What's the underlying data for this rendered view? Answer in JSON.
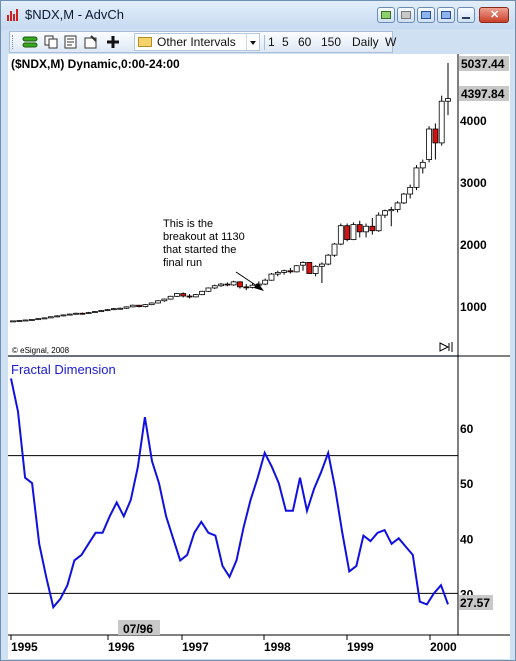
{
  "window": {
    "title": "$NDX,M - AdvCh"
  },
  "toolbar": {
    "interval_label": "Other Intervals",
    "intervals": [
      "1",
      "5",
      "60",
      "150",
      "Daily",
      "W"
    ]
  },
  "chart_data": [
    {
      "type": "candlestick",
      "title": "($NDX,M) Dynamic,0:00-24:00",
      "copyright": "© eSignal, 2008",
      "price_tags": [
        "5037.44",
        "4397.84"
      ],
      "y_ticks": [
        "4000",
        "3000",
        "2000",
        "1000"
      ],
      "yaxis": {
        "min": 0,
        "max": 5037.44,
        "ticks": [
          1000,
          2000,
          3000,
          4000
        ]
      },
      "annotation": {
        "lines": [
          "This is the",
          "breakout at 1130",
          "that started the",
          "final run"
        ]
      },
      "bars": [
        {
          "o": 390,
          "h": 405,
          "l": 380,
          "c": 398
        },
        {
          "o": 398,
          "h": 410,
          "l": 390,
          "c": 404
        },
        {
          "o": 404,
          "h": 420,
          "l": 396,
          "c": 414
        },
        {
          "o": 414,
          "h": 430,
          "l": 408,
          "c": 424
        },
        {
          "o": 424,
          "h": 445,
          "l": 418,
          "c": 438
        },
        {
          "o": 438,
          "h": 460,
          "l": 430,
          "c": 452
        },
        {
          "o": 452,
          "h": 480,
          "l": 448,
          "c": 472
        },
        {
          "o": 472,
          "h": 500,
          "l": 464,
          "c": 488
        },
        {
          "o": 488,
          "h": 515,
          "l": 480,
          "c": 505
        },
        {
          "o": 505,
          "h": 530,
          "l": 498,
          "c": 520
        },
        {
          "o": 520,
          "h": 545,
          "l": 510,
          "c": 535
        },
        {
          "o": 535,
          "h": 548,
          "l": 515,
          "c": 530
        },
        {
          "o": 530,
          "h": 560,
          "l": 522,
          "c": 548
        },
        {
          "o": 548,
          "h": 575,
          "l": 540,
          "c": 566
        },
        {
          "o": 566,
          "h": 595,
          "l": 556,
          "c": 585
        },
        {
          "o": 585,
          "h": 610,
          "l": 574,
          "c": 600
        },
        {
          "o": 600,
          "h": 630,
          "l": 590,
          "c": 618
        },
        {
          "o": 618,
          "h": 640,
          "l": 600,
          "c": 625
        },
        {
          "o": 625,
          "h": 660,
          "l": 615,
          "c": 650
        },
        {
          "o": 650,
          "h": 690,
          "l": 640,
          "c": 680
        },
        {
          "o": 680,
          "h": 680,
          "l": 640,
          "c": 655
        },
        {
          "o": 655,
          "h": 700,
          "l": 640,
          "c": 690
        },
        {
          "o": 690,
          "h": 730,
          "l": 680,
          "c": 720
        },
        {
          "o": 720,
          "h": 770,
          "l": 710,
          "c": 760
        },
        {
          "o": 760,
          "h": 800,
          "l": 740,
          "c": 790
        },
        {
          "o": 790,
          "h": 850,
          "l": 780,
          "c": 840
        },
        {
          "o": 840,
          "h": 900,
          "l": 830,
          "c": 890
        },
        {
          "o": 890,
          "h": 910,
          "l": 820,
          "c": 845
        },
        {
          "o": 845,
          "h": 880,
          "l": 800,
          "c": 830
        },
        {
          "o": 830,
          "h": 880,
          "l": 820,
          "c": 870
        },
        {
          "o": 870,
          "h": 940,
          "l": 860,
          "c": 930
        },
        {
          "o": 930,
          "h": 1000,
          "l": 920,
          "c": 990
        },
        {
          "o": 990,
          "h": 1050,
          "l": 970,
          "c": 1030
        },
        {
          "o": 1030,
          "h": 1080,
          "l": 1010,
          "c": 1060
        },
        {
          "o": 1060,
          "h": 1090,
          "l": 1020,
          "c": 1045
        },
        {
          "o": 1045,
          "h": 1120,
          "l": 1030,
          "c": 1100
        },
        {
          "o": 1100,
          "h": 1110,
          "l": 980,
          "c": 1010
        },
        {
          "o": 1010,
          "h": 1060,
          "l": 950,
          "c": 1000
        },
        {
          "o": 1000,
          "h": 1080,
          "l": 980,
          "c": 1040
        },
        {
          "o": 1040,
          "h": 1110,
          "l": 1000,
          "c": 1060
        },
        {
          "o": 1060,
          "h": 1160,
          "l": 1040,
          "c": 1130
        },
        {
          "o": 1130,
          "h": 1260,
          "l": 1120,
          "c": 1240
        },
        {
          "o": 1240,
          "h": 1300,
          "l": 1200,
          "c": 1270
        },
        {
          "o": 1270,
          "h": 1320,
          "l": 1230,
          "c": 1300
        },
        {
          "o": 1300,
          "h": 1350,
          "l": 1250,
          "c": 1280
        },
        {
          "o": 1280,
          "h": 1400,
          "l": 1270,
          "c": 1390
        },
        {
          "o": 1400,
          "h": 1470,
          "l": 1300,
          "c": 1450
        },
        {
          "o": 1450,
          "h": 1450,
          "l": 1250,
          "c": 1250
        },
        {
          "o": 1250,
          "h": 1400,
          "l": 1200,
          "c": 1380
        },
        {
          "o": 1380,
          "h": 1450,
          "l": 1080,
          "c": 1420
        },
        {
          "o": 1420,
          "h": 1600,
          "l": 1400,
          "c": 1580
        },
        {
          "o": 1580,
          "h": 1800,
          "l": 1550,
          "c": 1780
        },
        {
          "o": 1780,
          "h": 2150,
          "l": 1760,
          "c": 2110
        },
        {
          "o": 2110,
          "h": 2150,
          "l": 1830,
          "c": 1860
        },
        {
          "o": 1860,
          "h": 2170,
          "l": 1850,
          "c": 2130
        },
        {
          "o": 2130,
          "h": 2200,
          "l": 1900,
          "c": 2000
        },
        {
          "o": 2000,
          "h": 2150,
          "l": 1900,
          "c": 2100
        },
        {
          "o": 2100,
          "h": 2250,
          "l": 1950,
          "c": 2020
        },
        {
          "o": 2020,
          "h": 2350,
          "l": 2000,
          "c": 2300
        },
        {
          "o": 2300,
          "h": 2400,
          "l": 2250,
          "c": 2380
        },
        {
          "o": 2380,
          "h": 2450,
          "l": 2100,
          "c": 2400
        },
        {
          "o": 2400,
          "h": 2550,
          "l": 2350,
          "c": 2520
        },
        {
          "o": 2520,
          "h": 2700,
          "l": 2500,
          "c": 2680
        },
        {
          "o": 2680,
          "h": 2850,
          "l": 2600,
          "c": 2800
        },
        {
          "o": 2800,
          "h": 3200,
          "l": 2750,
          "c": 3150
        },
        {
          "o": 3150,
          "h": 3300,
          "l": 3050,
          "c": 3250
        },
        {
          "o": 3300,
          "h": 3900,
          "l": 3250,
          "c": 3850
        },
        {
          "o": 3850,
          "h": 3950,
          "l": 3300,
          "c": 3600
        },
        {
          "o": 3600,
          "h": 4450,
          "l": 3550,
          "c": 4350
        },
        {
          "o": 4350,
          "h": 5037.44,
          "l": 4100,
          "c": 4397.84
        }
      ]
    },
    {
      "type": "line",
      "title": "Fractal Dimension",
      "current_value": "27.57",
      "ylim": [
        23,
        72
      ],
      "y_ticks": [
        60,
        50,
        40,
        30
      ],
      "reference_lines": [
        55,
        30
      ],
      "x_axis_labels": [
        "1995",
        "1996",
        "1997",
        "1998",
        "1999",
        "2000"
      ],
      "cursor_label": "07/96",
      "series": [
        {
          "values": [
            69,
            63,
            51,
            50,
            39,
            33,
            27.5,
            29,
            31.5,
            36,
            37,
            39,
            41,
            41,
            44,
            46.5,
            44,
            47,
            53,
            62,
            54,
            50,
            44,
            40,
            36,
            37,
            41,
            43,
            41,
            40.5,
            35,
            33,
            36,
            42,
            47,
            51,
            55.5,
            53,
            50,
            45,
            45,
            51,
            45,
            49,
            52,
            55.5,
            49,
            41,
            34,
            35,
            40.5,
            39.5,
            41,
            41.5,
            39,
            40,
            38.5,
            37,
            28.5,
            28,
            30,
            31.5,
            28
          ]
        }
      ]
    }
  ]
}
